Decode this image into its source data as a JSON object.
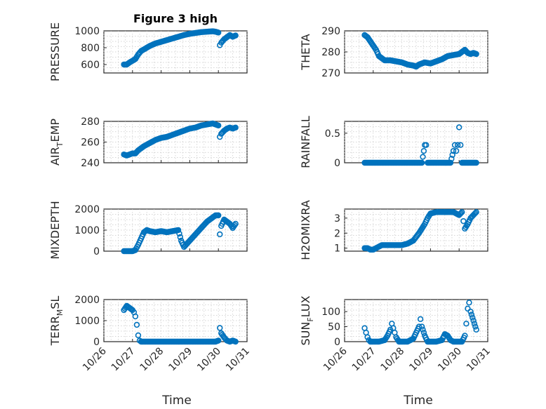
{
  "colors": {
    "series": "#0072BD",
    "axis": "#262626",
    "grid": "#c8c8c8"
  },
  "x_ticks": [
    "10/26",
    "10/27",
    "10/28",
    "10/29",
    "10/30",
    "10/31"
  ],
  "xlabel": "Time",
  "chart_data": [
    {
      "type": "scatter",
      "panel": 1,
      "title": "Figure 3 high",
      "ylabel": "PRESSURE",
      "ylim": [
        500,
        1000
      ],
      "yticks": [
        600,
        800,
        1000
      ],
      "xlim": [
        0,
        5
      ],
      "grid": true,
      "legend": "none",
      "x": [
        0.7,
        0.8,
        0.9,
        1.0,
        1.1,
        1.2,
        1.3,
        1.4,
        1.5,
        1.6,
        1.8,
        2.0,
        2.2,
        2.4,
        2.6,
        2.8,
        3.0,
        3.2,
        3.4,
        3.6,
        3.8,
        3.9,
        4.0,
        4.05,
        4.1,
        4.2,
        4.3,
        4.4,
        4.5,
        4.6
      ],
      "y": [
        600,
        600,
        625,
        645,
        665,
        720,
        760,
        780,
        800,
        820,
        850,
        870,
        890,
        910,
        930,
        950,
        965,
        975,
        985,
        990,
        995,
        990,
        980,
        830,
        860,
        900,
        925,
        950,
        930,
        945
      ]
    },
    {
      "type": "scatter",
      "panel": 2,
      "title": "",
      "ylabel": "THETA",
      "ylim": [
        270,
        290
      ],
      "yticks": [
        270,
        280,
        290
      ],
      "xlim": [
        0,
        5
      ],
      "grid": true,
      "legend": "none",
      "x": [
        0.7,
        0.8,
        0.9,
        1.0,
        1.1,
        1.2,
        1.3,
        1.4,
        1.6,
        1.8,
        2.0,
        2.2,
        2.4,
        2.5,
        2.6,
        2.8,
        3.0,
        3.2,
        3.4,
        3.6,
        3.8,
        4.0,
        4.1,
        4.2,
        4.3,
        4.4,
        4.5,
        4.6
      ],
      "y": [
        288,
        287,
        285,
        283,
        281,
        278,
        277,
        276,
        276,
        275.5,
        275,
        274,
        273.5,
        273,
        274,
        275,
        274.5,
        275.5,
        276.5,
        278,
        278.5,
        279,
        280,
        281,
        279.5,
        279,
        279.5,
        279
      ]
    },
    {
      "type": "scatter",
      "panel": 3,
      "title": "",
      "ylabel": "AIR_TEMP",
      "ylim": [
        240,
        280
      ],
      "yticks": [
        240,
        260,
        280
      ],
      "xlim": [
        0,
        5
      ],
      "grid": true,
      "legend": "none",
      "x": [
        0.7,
        0.8,
        0.9,
        1.0,
        1.1,
        1.2,
        1.4,
        1.6,
        1.8,
        2.0,
        2.2,
        2.4,
        2.6,
        2.8,
        3.0,
        3.2,
        3.4,
        3.6,
        3.8,
        3.9,
        4.0,
        4.05,
        4.1,
        4.2,
        4.3,
        4.4,
        4.5,
        4.6
      ],
      "y": [
        248,
        247,
        248,
        249,
        249,
        252,
        256,
        259,
        262,
        264,
        265,
        267,
        269,
        271,
        273,
        274,
        276,
        277,
        278,
        277,
        276,
        265,
        268,
        271,
        273,
        274,
        273,
        274
      ]
    },
    {
      "type": "scatter",
      "panel": 4,
      "title": "",
      "ylabel": "RAINFALL",
      "ylim": [
        0,
        0.7
      ],
      "yticks": [
        0,
        0.5
      ],
      "xlim": [
        0,
        5
      ],
      "grid": true,
      "legend": "none",
      "x": [
        0.7,
        0.9,
        1.1,
        1.3,
        1.5,
        1.7,
        1.9,
        2.1,
        2.3,
        2.5,
        2.7,
        2.8,
        2.85,
        2.9,
        3.0,
        3.2,
        3.4,
        3.6,
        3.7,
        3.8,
        3.85,
        3.9,
        3.95,
        4.0,
        4.05,
        4.1,
        4.2,
        4.3,
        4.4,
        4.5,
        4.6
      ],
      "y": [
        0,
        0,
        0,
        0,
        0,
        0,
        0,
        0,
        0,
        0,
        0,
        0.3,
        0.3,
        0,
        0,
        0,
        0,
        0,
        0,
        0.2,
        0.3,
        0.2,
        0.3,
        0.6,
        0.3,
        0,
        0,
        0,
        0,
        0,
        0
      ]
    },
    {
      "type": "scatter",
      "panel": 5,
      "title": "",
      "ylabel": "MIXDEPTH",
      "ylim": [
        0,
        2000
      ],
      "yticks": [
        0,
        1000,
        2000
      ],
      "xlim": [
        0,
        5
      ],
      "grid": true,
      "legend": "none",
      "x": [
        0.7,
        0.8,
        0.9,
        1.0,
        1.1,
        1.2,
        1.3,
        1.4,
        1.5,
        1.6,
        1.8,
        2.0,
        2.2,
        2.4,
        2.6,
        2.7,
        2.8,
        2.9,
        3.0,
        3.2,
        3.4,
        3.6,
        3.8,
        3.9,
        4.0,
        4.05,
        4.1,
        4.2,
        4.3,
        4.4,
        4.5,
        4.6
      ],
      "y": [
        0,
        0,
        0,
        0,
        50,
        300,
        600,
        900,
        1000,
        950,
        900,
        950,
        900,
        950,
        1000,
        500,
        200,
        350,
        500,
        800,
        1100,
        1400,
        1600,
        1700,
        1700,
        800,
        1200,
        1500,
        1400,
        1300,
        1100,
        1300
      ]
    },
    {
      "type": "scatter",
      "panel": 6,
      "title": "",
      "ylabel": "H2OMIXRA",
      "ylim": [
        0.8,
        3.6
      ],
      "yticks": [
        1,
        2,
        3
      ],
      "xlim": [
        0,
        5
      ],
      "grid": true,
      "legend": "none",
      "x": [
        0.7,
        0.8,
        0.9,
        1.0,
        1.1,
        1.2,
        1.3,
        1.4,
        1.6,
        1.8,
        2.0,
        2.2,
        2.4,
        2.6,
        2.8,
        2.9,
        3.0,
        3.2,
        3.4,
        3.6,
        3.8,
        3.9,
        4.0,
        4.1,
        4.15,
        4.2,
        4.3,
        4.4,
        4.5,
        4.6
      ],
      "y": [
        1,
        1,
        0.9,
        0.9,
        1,
        1.1,
        1.2,
        1.2,
        1.2,
        1.2,
        1.2,
        1.3,
        1.5,
        2,
        2.6,
        3,
        3.3,
        3.4,
        3.4,
        3.4,
        3.4,
        3.3,
        3.2,
        3.4,
        2.8,
        2.3,
        2.6,
        3,
        3.2,
        3.4
      ]
    },
    {
      "type": "scatter",
      "panel": 7,
      "title": "",
      "ylabel": "TERR_MSL",
      "ylim": [
        0,
        2000
      ],
      "yticks": [
        0,
        1000,
        2000
      ],
      "xlim": [
        0,
        5
      ],
      "grid": true,
      "legend": "none",
      "x": [
        0.7,
        0.8,
        0.9,
        1.0,
        1.05,
        1.1,
        1.15,
        1.2,
        1.25,
        1.3,
        1.5,
        1.7,
        1.9,
        2.1,
        2.3,
        2.5,
        2.7,
        2.9,
        3.1,
        3.3,
        3.5,
        3.7,
        3.9,
        4.0,
        4.05,
        4.1,
        4.2,
        4.3,
        4.4,
        4.5,
        4.6
      ],
      "y": [
        1500,
        1700,
        1600,
        1500,
        1400,
        1200,
        800,
        300,
        50,
        0,
        0,
        0,
        0,
        0,
        0,
        0,
        0,
        0,
        0,
        0,
        0,
        0,
        0,
        50,
        650,
        400,
        200,
        50,
        0,
        50,
        0
      ]
    },
    {
      "type": "scatter",
      "panel": 8,
      "title": "",
      "ylabel": "SUN_FLUX",
      "ylim": [
        0,
        140
      ],
      "yticks": [
        0,
        50,
        100
      ],
      "xlim": [
        0,
        5
      ],
      "grid": true,
      "legend": "none",
      "x": [
        0.7,
        0.75,
        0.8,
        0.85,
        0.9,
        1.0,
        1.2,
        1.4,
        1.5,
        1.6,
        1.65,
        1.7,
        1.75,
        1.8,
        1.9,
        2.0,
        2.2,
        2.4,
        2.5,
        2.6,
        2.65,
        2.7,
        2.8,
        2.9,
        3.0,
        3.2,
        3.4,
        3.5,
        3.6,
        3.7,
        3.8,
        4.0,
        4.1,
        4.2,
        4.25,
        4.3,
        4.35,
        4.4,
        4.5,
        4.6
      ],
      "y": [
        45,
        30,
        15,
        5,
        0,
        0,
        0,
        5,
        20,
        40,
        60,
        45,
        30,
        15,
        0,
        0,
        0,
        10,
        30,
        50,
        75,
        50,
        20,
        0,
        0,
        0,
        5,
        25,
        20,
        5,
        0,
        0,
        0,
        20,
        60,
        110,
        130,
        100,
        70,
        40
      ]
    }
  ]
}
